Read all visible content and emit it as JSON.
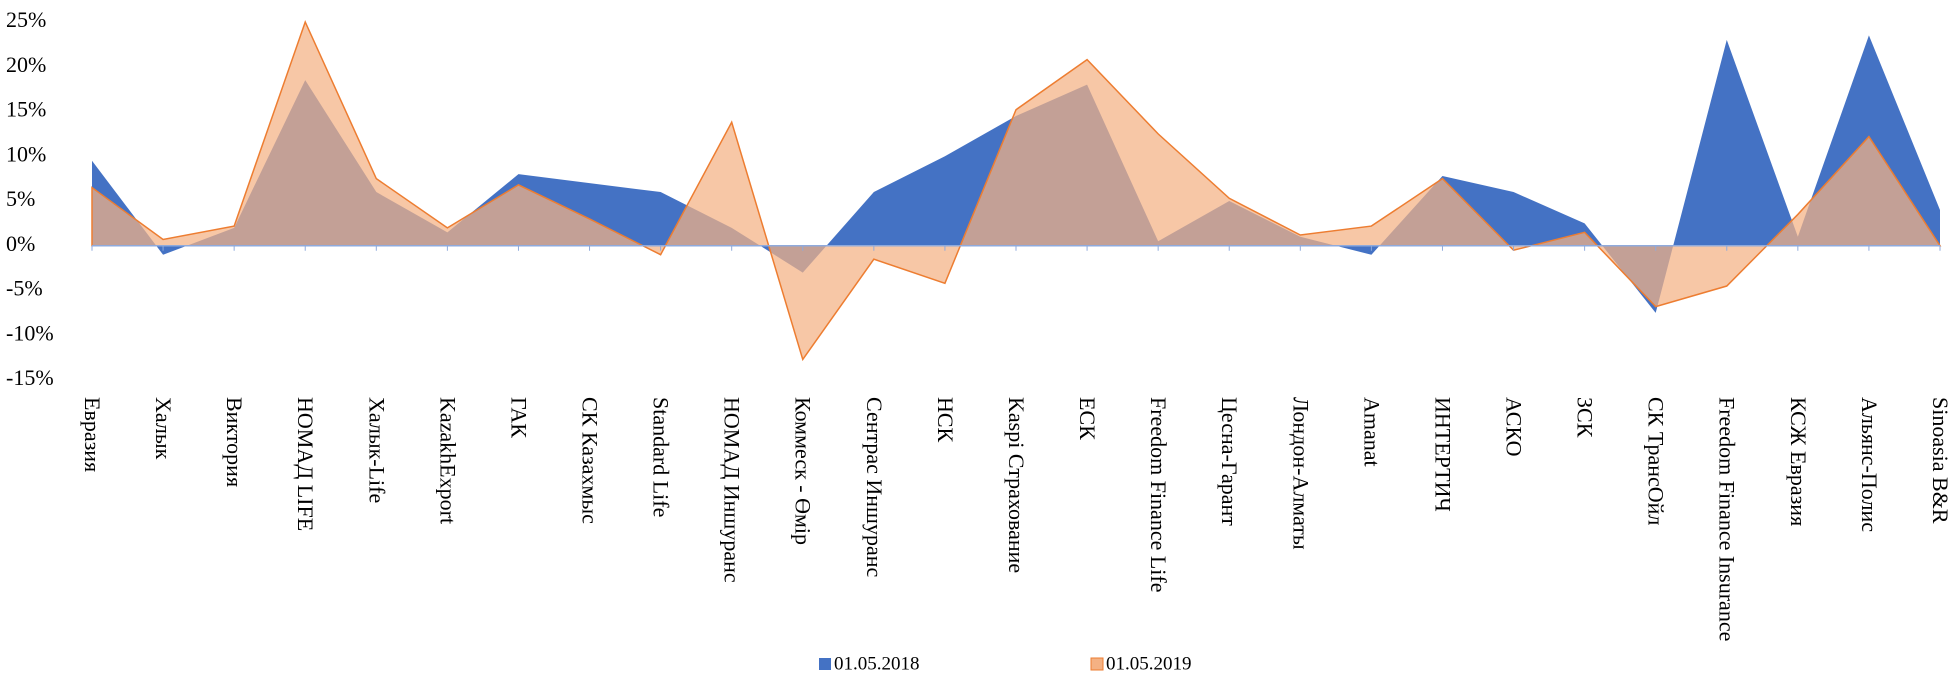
{
  "chart_data": {
    "type": "area",
    "categories": [
      "Евразия",
      "Халык",
      "Виктория",
      "НОМАД LIFE",
      "Халык-Life",
      "KazakhExport",
      "ГАК",
      "СК Казахмыс",
      "Standard Life",
      "НОМАД Иншуранс",
      "Коммеск - Өмір",
      "Сентрас Иншуранс",
      "НСК",
      "Kaspi Страхование",
      "ЕСК",
      "Freedom Finance Life",
      "Цесна-Гарант",
      "Лондон-Алматы",
      "Amanat",
      "ИНТЕРТИЧ",
      "АСКО",
      "ЗСК",
      "СК ТрансОйл",
      "Freedom Finance Insurance",
      "КСЖ Евразия",
      "Альянс-Полис",
      "Sinoasia B&R"
    ],
    "series": [
      {
        "name": "01.05.2018",
        "color": "#4472c4",
        "values": [
          9.5,
          -1,
          2,
          18.5,
          6,
          1.5,
          8,
          7,
          6,
          2,
          -3,
          6,
          10,
          14.5,
          18,
          0.5,
          5,
          1,
          -1,
          7.8,
          6,
          2.5,
          -7.5,
          23,
          1,
          23.5,
          4
        ]
      },
      {
        "name": "01.05.2019",
        "color": "#f4b183",
        "values": [
          6.5,
          0.7,
          2.2,
          25,
          7.5,
          2,
          6.8,
          3,
          -1,
          13.8,
          -12.7,
          -1.5,
          -4.2,
          15.2,
          20.8,
          12.5,
          5.3,
          1.2,
          2.2,
          7.5,
          -0.5,
          1.5,
          -6.8,
          -4.5,
          3.5,
          12.2,
          0
        ]
      }
    ],
    "ylim": [
      -15,
      25
    ],
    "yticks": [
      {
        "value": -15,
        "label": "-15%"
      },
      {
        "value": -10,
        "label": "-10%"
      },
      {
        "value": -5,
        "label": "-5%"
      },
      {
        "value": 0,
        "label": "0%"
      },
      {
        "value": 5,
        "label": "5%"
      },
      {
        "value": 10,
        "label": "10%"
      },
      {
        "value": 15,
        "label": "15%"
      },
      {
        "value": 20,
        "label": "20%"
      },
      {
        "value": 25,
        "label": "25%"
      }
    ],
    "legend": "bottom"
  }
}
